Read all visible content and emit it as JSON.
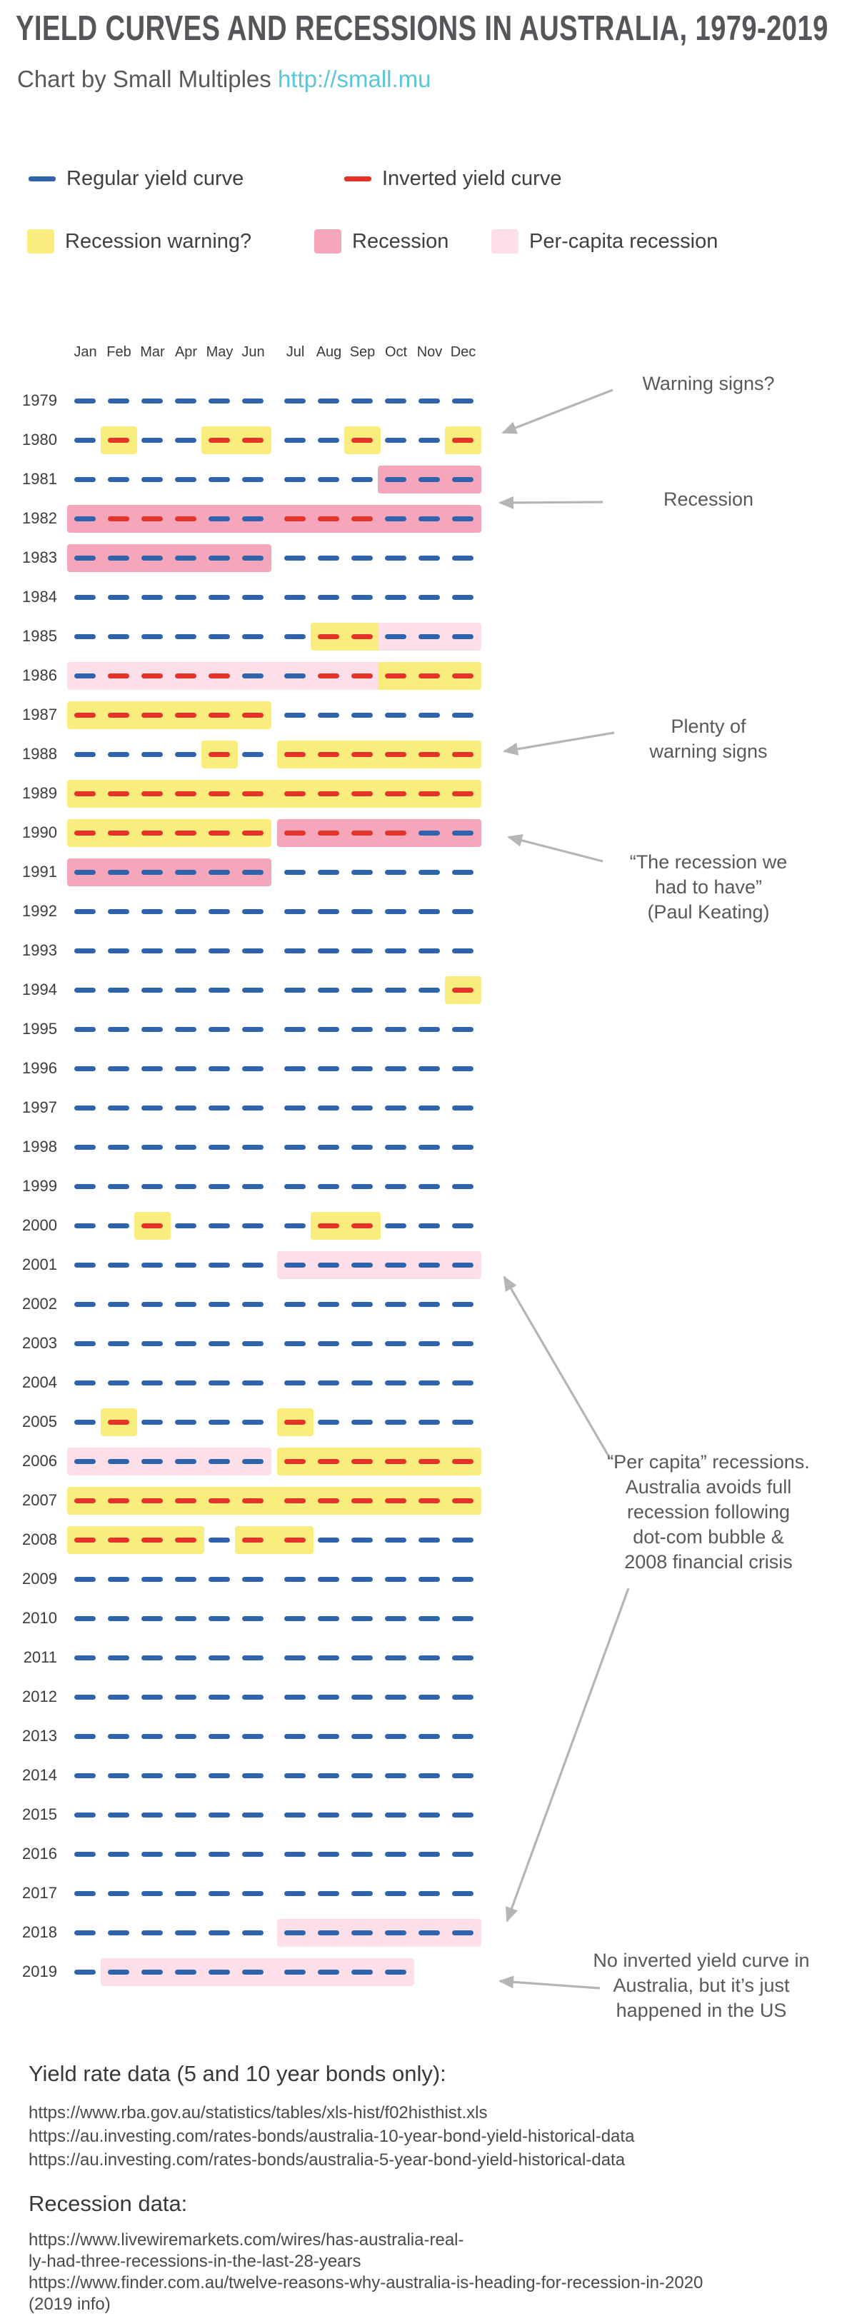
{
  "title": "YIELD CURVES AND RECESSIONS IN AUSTRALIA, 1979-2019",
  "subtitle": {
    "prefix": "Chart by Small Multiples ",
    "link": "http://small.mu"
  },
  "legend": {
    "regular": "Regular yield curve",
    "inverted": "Inverted yield curve",
    "warning": "Recession warning?",
    "recession": "Recession",
    "percapita": "Per-capita recession"
  },
  "colors": {
    "blue": "#2f64ad",
    "red": "#e63329",
    "yellow": "#f9ee7d",
    "pink": "#f6a6ba",
    "lightpink": "#fcdfe9",
    "link": "#5bc6d8",
    "arrow": "#b5b5b5",
    "text": "#58595b"
  },
  "chart_data": {
    "type": "heatmap",
    "title": "Yield curves and recessions in Australia, 1979-2019",
    "months": [
      "Jan",
      "Feb",
      "Mar",
      "Apr",
      "May",
      "Jun",
      "Jul",
      "Aug",
      "Sep",
      "Oct",
      "Nov",
      "Dec"
    ],
    "encoding": "dash: B=regular yield curve (blue), R=inverted yield curve (red), -=no data; bg: .=none, Y=recession warning (yellow), P=recession (pink), L=per-capita recession (light pink)",
    "years": [
      {
        "year": 1979,
        "dash": "BBBBBBBBBBBB",
        "bg": "............"
      },
      {
        "year": 1980,
        "dash": "BRBBRRBBRBBR",
        "bg": ".Y..YY..Y..Y"
      },
      {
        "year": 1981,
        "dash": "BBBBBBBBBBBB",
        "bg": ".........PPP"
      },
      {
        "year": 1982,
        "dash": "BRRRBBRRRBBB",
        "bg": "PPPPPPPPPPPP"
      },
      {
        "year": 1983,
        "dash": "BBBBBBBBBBBB",
        "bg": "PPPPPP......"
      },
      {
        "year": 1984,
        "dash": "BBBBBBBBBBBB",
        "bg": "............"
      },
      {
        "year": 1985,
        "dash": "BBBBBBBRRBBB",
        "bg": ".......YYLLL"
      },
      {
        "year": 1986,
        "dash": "BRRRRBBRRRRR",
        "bg": "LLLLLLLLLYYY"
      },
      {
        "year": 1987,
        "dash": "RRRRRRBBBBBB",
        "bg": "YYYYYY......"
      },
      {
        "year": 1988,
        "dash": "BBBBRBRRRRRR",
        "bg": "....Y.YYYYYY"
      },
      {
        "year": 1989,
        "dash": "RRRRRRRRRRRR",
        "bg": "YYYYYYYYYYYY"
      },
      {
        "year": 1990,
        "dash": "RRRRRRRRRRBB",
        "bg": "YYYYYYPPPPPP"
      },
      {
        "year": 1991,
        "dash": "BBBBBBBBBBBB",
        "bg": "PPPPPP......"
      },
      {
        "year": 1992,
        "dash": "BBBBBBBBBBBB",
        "bg": "............"
      },
      {
        "year": 1993,
        "dash": "BBBBBBBBBBBB",
        "bg": "............"
      },
      {
        "year": 1994,
        "dash": "BBBBBBBBBBBR",
        "bg": "...........Y"
      },
      {
        "year": 1995,
        "dash": "BBBBBBBBBBBB",
        "bg": "............"
      },
      {
        "year": 1996,
        "dash": "BBBBBBBBBBBB",
        "bg": "............"
      },
      {
        "year": 1997,
        "dash": "BBBBBBBBBBBB",
        "bg": "............"
      },
      {
        "year": 1998,
        "dash": "BBBBBBBBBBBB",
        "bg": "............"
      },
      {
        "year": 1999,
        "dash": "BBBBBBBBBBBB",
        "bg": "............"
      },
      {
        "year": 2000,
        "dash": "BBRBBBBRRBBB",
        "bg": "..Y....YY..."
      },
      {
        "year": 2001,
        "dash": "BBBBBBBBBBBB",
        "bg": "......LLLLLL"
      },
      {
        "year": 2002,
        "dash": "BBBBBBBBBBBB",
        "bg": "............"
      },
      {
        "year": 2003,
        "dash": "BBBBBBBBBBBB",
        "bg": "............"
      },
      {
        "year": 2004,
        "dash": "BBBBBBBBBBBB",
        "bg": "............"
      },
      {
        "year": 2005,
        "dash": "BRBBBBRBBBBB",
        "bg": ".Y....Y....."
      },
      {
        "year": 2006,
        "dash": "BBBBBBRRRRRR",
        "bg": "LLLLLLYYYYYY"
      },
      {
        "year": 2007,
        "dash": "RRRRRRRRRRRR",
        "bg": "YYYYYYYYYYYY"
      },
      {
        "year": 2008,
        "dash": "RRRRBRRBBBBB",
        "bg": "YYYY.YY....."
      },
      {
        "year": 2009,
        "dash": "BBBBBBBBBBBB",
        "bg": "............"
      },
      {
        "year": 2010,
        "dash": "BBBBBBBBBBBB",
        "bg": "............"
      },
      {
        "year": 2011,
        "dash": "BBBBBBBBBBBB",
        "bg": "............"
      },
      {
        "year": 2012,
        "dash": "BBBBBBBBBBBB",
        "bg": "............"
      },
      {
        "year": 2013,
        "dash": "BBBBBBBBBBBB",
        "bg": "............"
      },
      {
        "year": 2014,
        "dash": "BBBBBBBBBBBB",
        "bg": "............"
      },
      {
        "year": 2015,
        "dash": "BBBBBBBBBBBB",
        "bg": "............"
      },
      {
        "year": 2016,
        "dash": "BBBBBBBBBBBB",
        "bg": "............"
      },
      {
        "year": 2017,
        "dash": "BBBBBBBBBBBB",
        "bg": "............"
      },
      {
        "year": 2018,
        "dash": "BBBBBBBBBBBB",
        "bg": "......LLLLLL"
      },
      {
        "year": 2019,
        "dash": "BBBBBBBBBB--",
        "bg": ".LLLLLLLLL.."
      }
    ]
  },
  "annotations": [
    {
      "id": "warning-signs",
      "text": "Warning signs?"
    },
    {
      "id": "recession",
      "text": "Recession"
    },
    {
      "id": "plenty",
      "text": "Plenty of\nwarning signs"
    },
    {
      "id": "keating",
      "text": "“The recession we\nhad to have”\n(Paul Keating)"
    },
    {
      "id": "percapita",
      "text": "“Per capita” recessions.\nAustralia avoids full\nrecession following\ndot-com bubble &\n2008 financial crisis"
    },
    {
      "id": "no-inverted",
      "text": "No inverted yield curve in\nAustralia, but it’s just\nhappened in the US"
    }
  ],
  "footer": {
    "yield_heading": "Yield rate data (5 and 10 year bonds only):",
    "yield_links": [
      "https://www.rba.gov.au/statistics/tables/xls-hist/f02histhist.xls",
      "https://au.investing.com/rates-bonds/australia-10-year-bond-yield-historical-data",
      "https://au.investing.com/rates-bonds/australia-5-year-bond-yield-historical-data"
    ],
    "recession_heading": "Recession data:",
    "recession_links": [
      "https://www.livewiremarkets.com/wires/has-australia-real-\nly-had-three-recessions-in-the-last-28-years",
      "https://www.finder.com.au/twelve-reasons-why-australia-is-heading-for-recession-in-2020\n(2019 info)"
    ]
  }
}
